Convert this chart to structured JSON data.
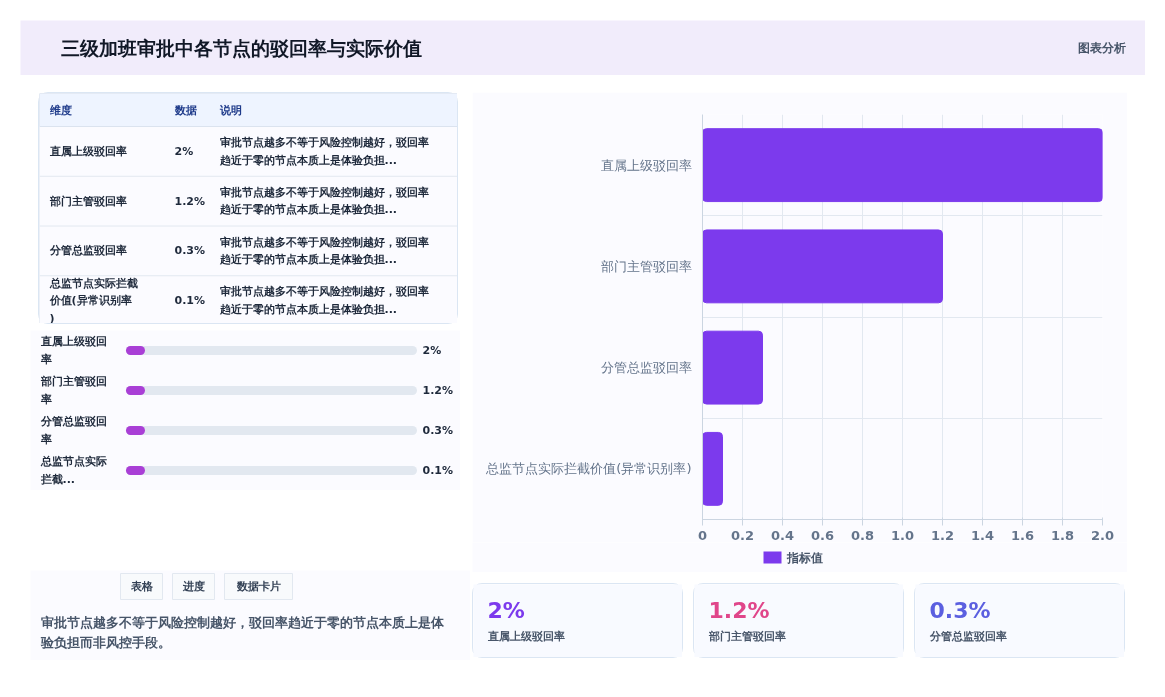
{
  "chart_data": [
    {
      "type": "other",
      "title": "三级加班审批中各节点的驳回率与实际价值",
      "annotations": [
        "图表分析"
      ]
    },
    {
      "type": "other",
      "annotations": [
        "维度",
        "数据",
        "说明",
        "直属上级驳回率",
        "2%",
        "审批节点越多不等于风险控制越好，驳回率趋近于零的节点本质上是体验负担...",
        "部门主管驳回率",
        "1.2%",
        "审批节点越多不等于风险控制越好，驳回率趋近于零的节点本质上是体验负担...",
        "分管总监驳回率",
        "0.3%",
        "审批节点越多不等于风险控制越好，驳回率趋近于零的节点本质上是体验负担...",
        "总监节点实际拦截价值(异常识别率)",
        "0.1%",
        "审批节点越多不等于风险控制越好，驳回率趋近于零的节点本质上是体验负担..."
      ]
    },
    {
      "type": "other",
      "annotations": [
        "直属上级驳回率",
        "2%",
        "部门主管驳回率",
        "1.2%",
        "分管总监驳回率",
        "0.3%",
        "总监节点实际拦截...",
        "0.1%"
      ]
    },
    {
      "type": "other",
      "annotations": [
        "表格",
        "进度",
        "数据卡片",
        "审批节点越多不等于风险控制越好，驳回率趋近于零的节点本质上是体验负担而非风控手段。"
      ]
    },
    {
      "type": "bar",
      "orientation": "horizontal",
      "categories": [
        "直属上级驳回率",
        "部门主管驳回率",
        "分管总监驳回率",
        "总监节点实际拦截价值(异常识别率)"
      ],
      "series": [
        {
          "name": "指标值",
          "color": "#7c3aed",
          "values": [
            2,
            1.2,
            0.3,
            0.1
          ]
        }
      ],
      "xlim": [
        0,
        2
      ],
      "xticks": [
        0,
        0.2,
        0.4,
        0.6,
        0.8,
        {
          "value": 1,
          "label": "1.0"
        },
        1.2,
        1.4,
        1.6,
        1.8,
        {
          "value": 2,
          "label": "2.0"
        }
      ],
      "grid": true,
      "legend": "bottom"
    },
    {
      "type": "other",
      "annotations": [
        "2%",
        "直属上级驳回率",
        "1.2%",
        "部门主管驳回率",
        "0.3%",
        "分管总监驳回率"
      ]
    }
  ]
}
